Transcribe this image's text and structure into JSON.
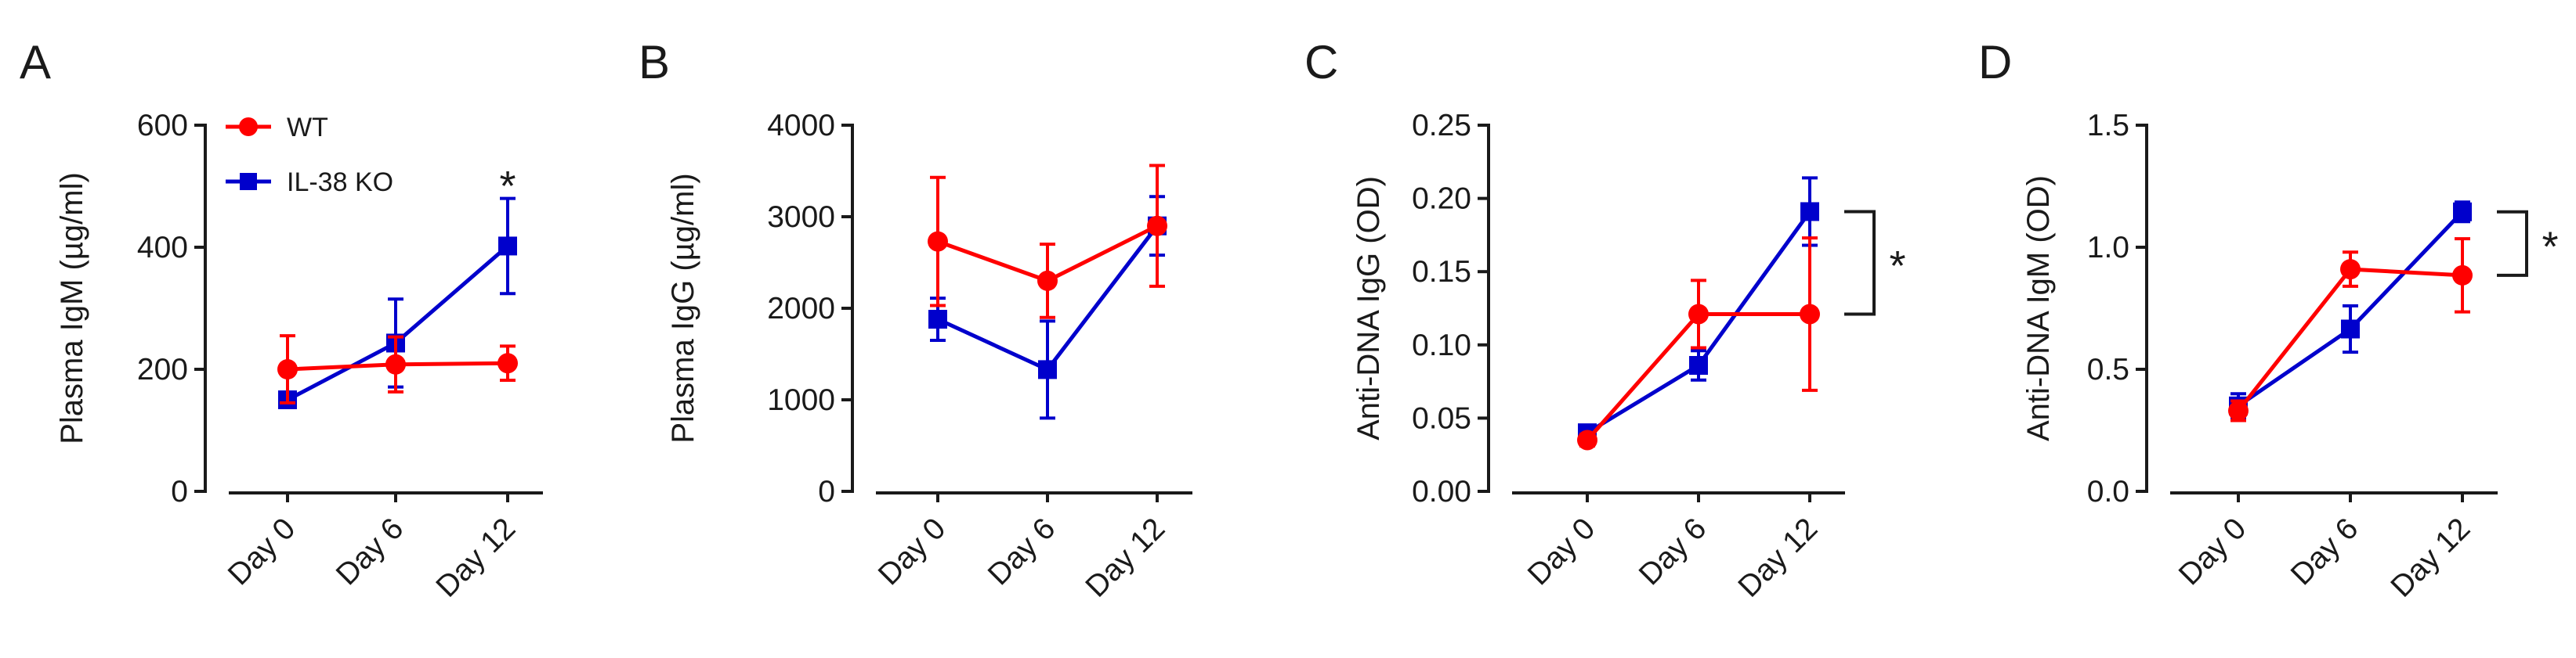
{
  "chart_data": [
    {
      "type": "line",
      "panel": "A",
      "ylabel": "Plasma IgM (µg/ml)",
      "ylim": [
        0,
        600
      ],
      "yticks": [
        "0",
        "200",
        "400",
        "600"
      ],
      "categories": [
        "Day 0",
        "Day 6",
        "Day 12"
      ],
      "series": [
        {
          "name": "WT",
          "color": "#ff0000",
          "marker": "circle",
          "values": [
            200,
            208,
            210
          ],
          "error": [
            55,
            45,
            28
          ]
        },
        {
          "name": "IL-38 KO",
          "color": "#0000cc",
          "marker": "square",
          "values": [
            150,
            243,
            402
          ],
          "error": [
            10,
            72,
            78
          ]
        }
      ],
      "legend": "top-left",
      "annotations": [
        {
          "text": "*",
          "category_index": 2,
          "value": 490
        }
      ]
    },
    {
      "type": "line",
      "panel": "B",
      "ylabel": "Plasma IgG (µg/ml)",
      "ylim": [
        0,
        4000
      ],
      "yticks": [
        "0",
        "1000",
        "2000",
        "3000",
        "4000"
      ],
      "categories": [
        "Day 0",
        "Day 6",
        "Day 12"
      ],
      "series": [
        {
          "name": "WT",
          "color": "#ff0000",
          "marker": "circle",
          "values": [
            2730,
            2300,
            2900
          ],
          "error": [
            700,
            400,
            660
          ]
        },
        {
          "name": "IL-38 KO",
          "color": "#0000cc",
          "marker": "square",
          "values": [
            1880,
            1330,
            2900
          ],
          "error": [
            230,
            530,
            320
          ]
        }
      ]
    },
    {
      "type": "line",
      "panel": "C",
      "ylabel": "Anti-DNA IgG (OD)",
      "ylim": [
        0,
        0.25
      ],
      "yticks": [
        "0.00",
        "0.05",
        "0.10",
        "0.15",
        "0.20",
        "0.25"
      ],
      "categories": [
        "Day 0",
        "Day 6",
        "Day 12"
      ],
      "series": [
        {
          "name": "WT",
          "color": "#ff0000",
          "marker": "circle",
          "values": [
            0.035,
            0.121,
            0.121
          ],
          "error": [
            0.004,
            0.023,
            0.052
          ]
        },
        {
          "name": "IL-38 KO",
          "color": "#0000cc",
          "marker": "square",
          "values": [
            0.04,
            0.086,
            0.191
          ],
          "error": [
            0.005,
            0.01,
            0.023
          ]
        }
      ],
      "bracket": {
        "from": 0.191,
        "to": 0.121,
        "text": "*"
      }
    },
    {
      "type": "line",
      "panel": "D",
      "ylabel": "Anti-DNA IgM (OD)",
      "ylim": [
        0,
        1.5
      ],
      "yticks": [
        "0.0",
        "0.5",
        "1.0",
        "1.5"
      ],
      "categories": [
        "Day 0",
        "Day 6",
        "Day 12"
      ],
      "series": [
        {
          "name": "WT",
          "color": "#ff0000",
          "marker": "circle",
          "values": [
            0.33,
            0.91,
            0.885
          ],
          "error": [
            0.04,
            0.07,
            0.15
          ]
        },
        {
          "name": "IL-38 KO",
          "color": "#0000cc",
          "marker": "square",
          "values": [
            0.35,
            0.665,
            1.145
          ],
          "error": [
            0.05,
            0.095,
            0.04
          ]
        }
      ],
      "bracket": {
        "from": 1.145,
        "to": 0.885,
        "text": "*"
      }
    }
  ]
}
